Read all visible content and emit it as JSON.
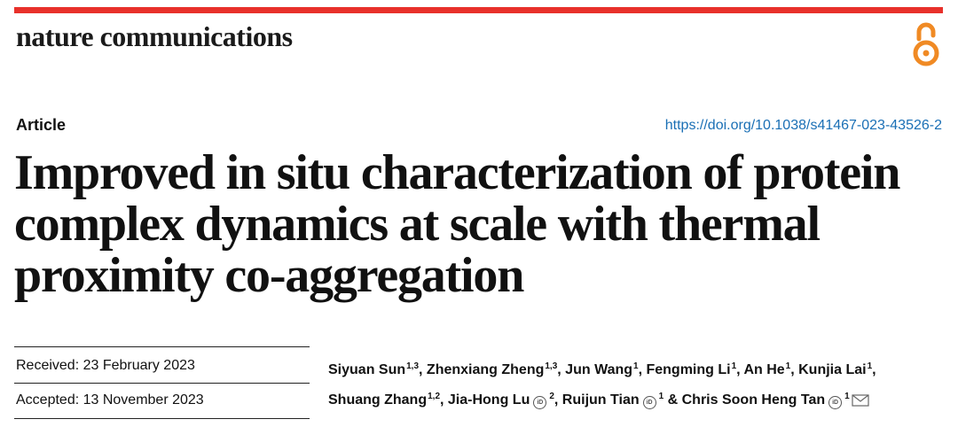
{
  "header": {
    "journal": "nature communications",
    "accent_color": "#e8312b",
    "oa_icon_color": "#f08a24"
  },
  "meta": {
    "article_type": "Article",
    "doi": "https://doi.org/10.1038/s41467-023-43526-2"
  },
  "title_lines": [
    "Improved in situ characterization of protein",
    "complex dynamics at scale with thermal",
    "proximity co-aggregation"
  ],
  "dates": {
    "received": "Received: 23 February 2023",
    "accepted": "Accepted: 13 November 2023"
  },
  "authors": [
    {
      "name": "Siyuan Sun",
      "aff": "1,3",
      "orcid": false
    },
    {
      "name": "Zhenxiang Zheng",
      "aff": "1,3",
      "orcid": false
    },
    {
      "name": "Jun Wang",
      "aff": "1",
      "orcid": false
    },
    {
      "name": "Fengming Li",
      "aff": "1",
      "orcid": false
    },
    {
      "name": "An He",
      "aff": "1",
      "orcid": false
    },
    {
      "name": "Kunjia Lai",
      "aff": "1",
      "orcid": false
    },
    {
      "name": "Shuang Zhang",
      "aff": "1,2",
      "orcid": false
    },
    {
      "name": "Jia-Hong Lu",
      "aff": "2",
      "orcid": true
    },
    {
      "name": "Ruijun Tian",
      "aff": "1",
      "orcid": true
    },
    {
      "name": "Chris Soon Heng Tan",
      "aff": "1",
      "orcid": true,
      "corresponding": true
    }
  ],
  "separators": {
    "comma": ", ",
    "last": " & "
  },
  "icons": {
    "orcid": "orcid-icon",
    "mail": "mail-icon",
    "open_access": "open-access-icon"
  }
}
